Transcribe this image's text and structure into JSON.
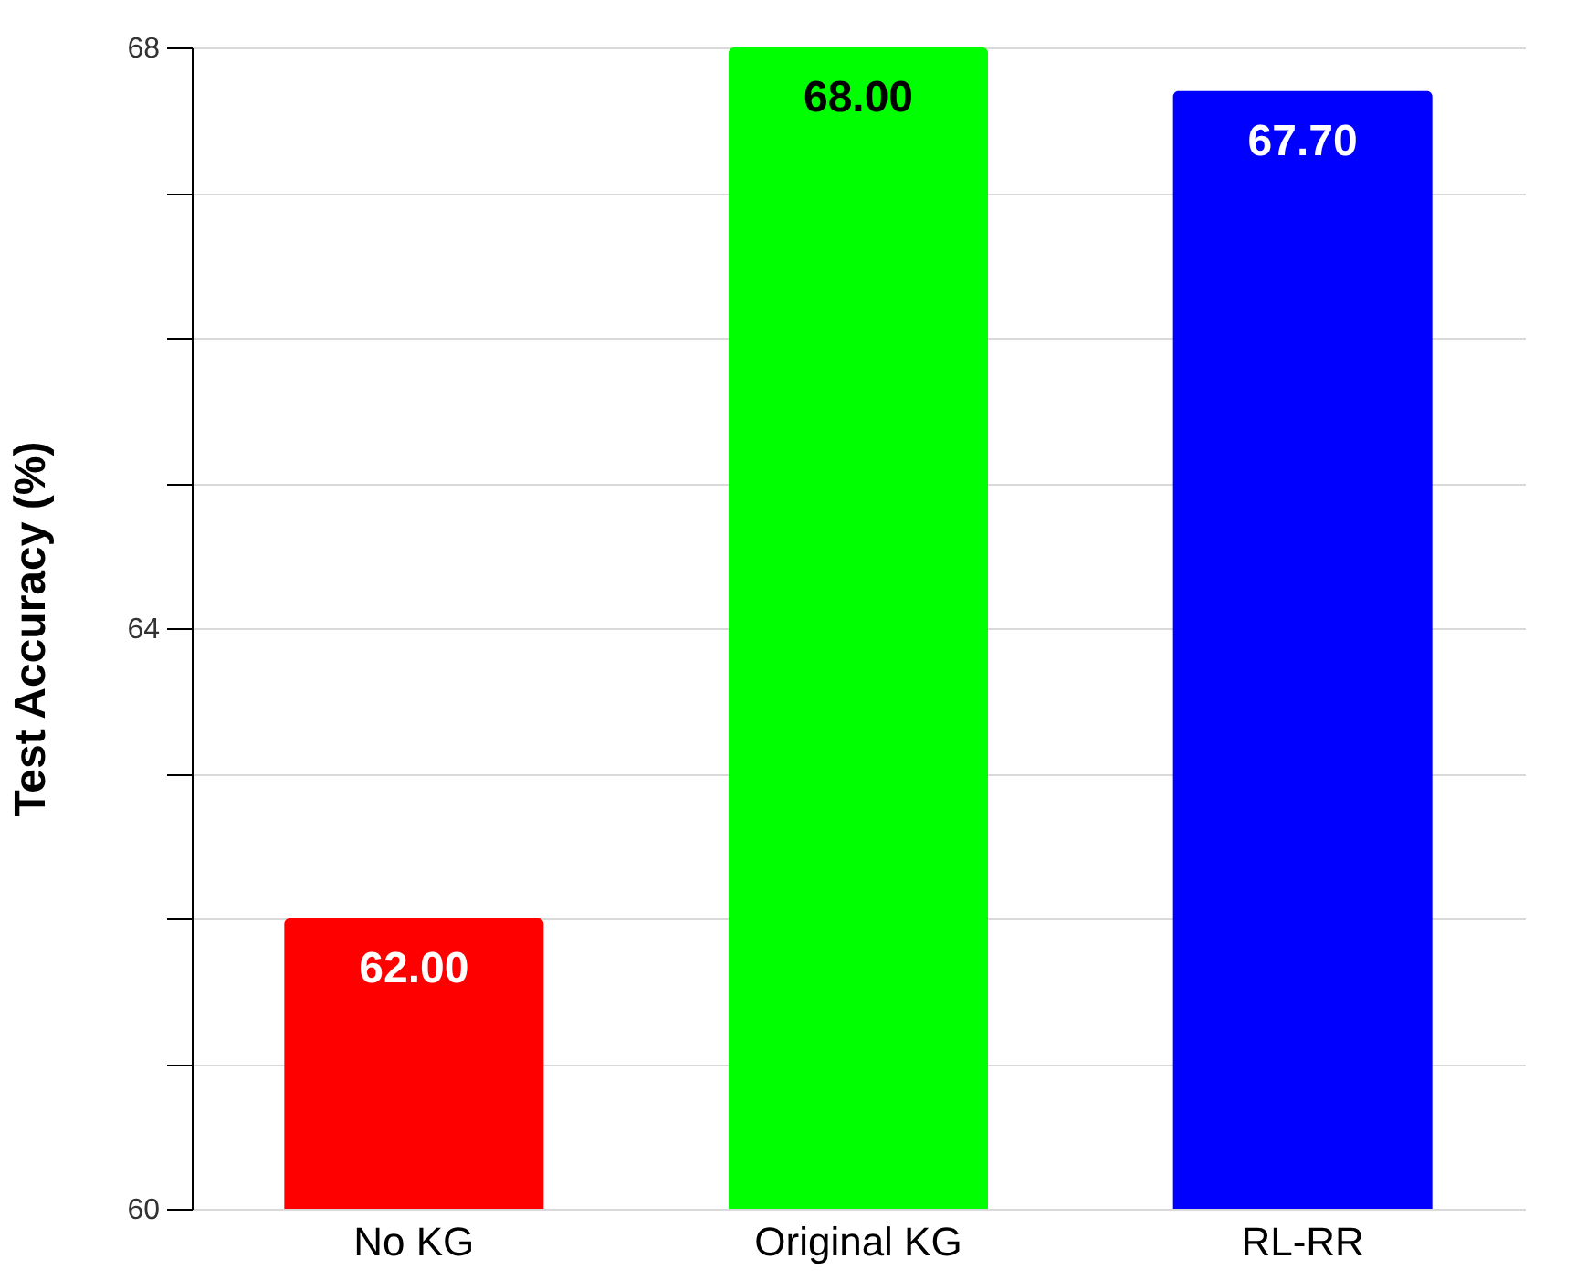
{
  "chart_data": {
    "type": "bar",
    "ylabel": "Test Accuracy (%)",
    "categories": [
      "No KG",
      "Original KG",
      "RL-RR"
    ],
    "values": [
      62.0,
      68.0,
      67.7
    ],
    "value_labels": [
      "62.00",
      "68.00",
      "67.70"
    ],
    "colors": [
      "#ff0000",
      "#00ff00",
      "#0000ff"
    ],
    "ylim": [
      60,
      68
    ],
    "yticks": [
      60,
      {
        "value": 61,
        "label": null
      },
      {
        "value": 62,
        "label": null
      },
      {
        "value": 63,
        "label": null
      },
      64,
      {
        "value": 65,
        "label": null
      },
      {
        "value": 66,
        "label": null
      },
      {
        "value": 67,
        "label": null
      },
      68
    ],
    "grid": "y"
  }
}
